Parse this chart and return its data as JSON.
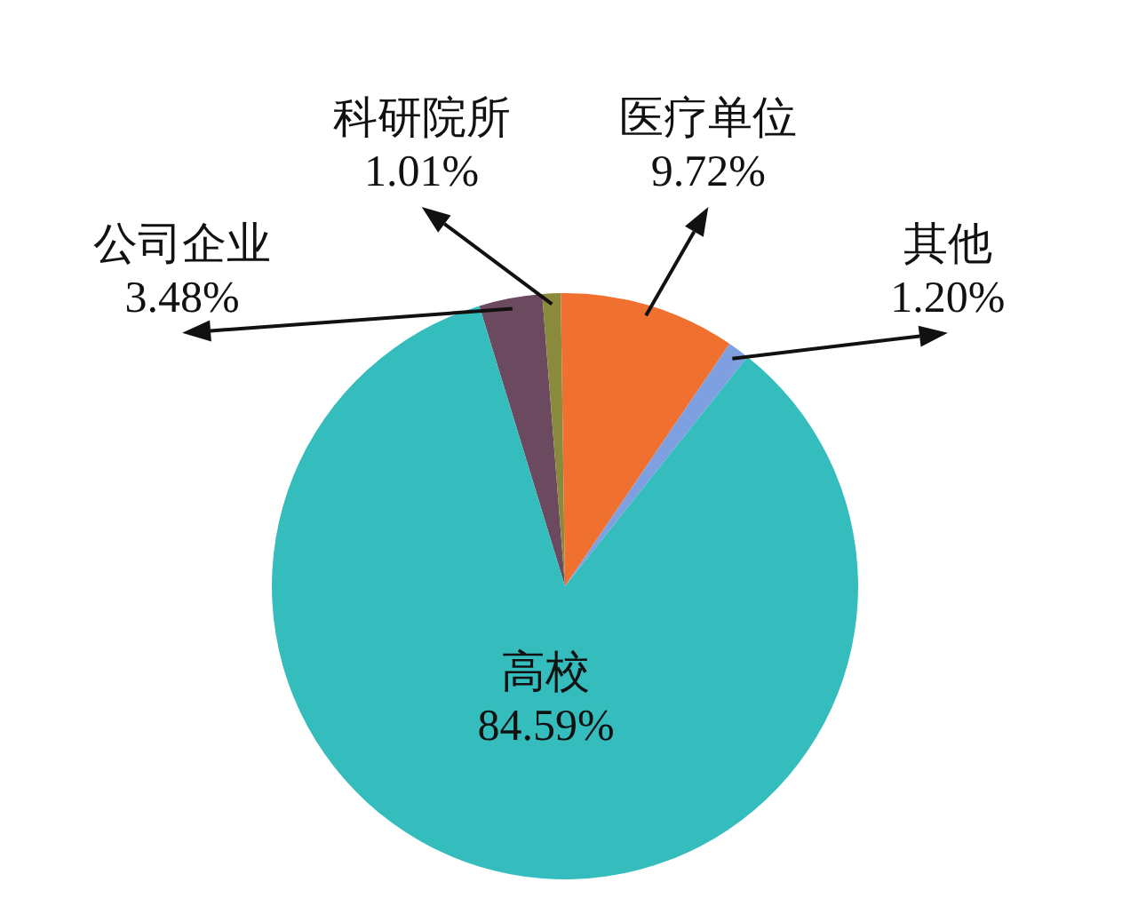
{
  "chart_data": {
    "type": "pie",
    "categories": [
      "公司企业",
      "科研院所",
      "医疗单位",
      "其他",
      "高校"
    ],
    "values": [
      3.48,
      1.01,
      9.72,
      1.2,
      84.59
    ],
    "colors": [
      "#6b4a60",
      "#8a8a3c",
      "#f07030",
      "#7fa0e0",
      "#35bdbd"
    ],
    "value_labels": [
      "3.48%",
      "1.01%",
      "9.72%",
      "1.20%",
      "84.59%"
    ]
  }
}
